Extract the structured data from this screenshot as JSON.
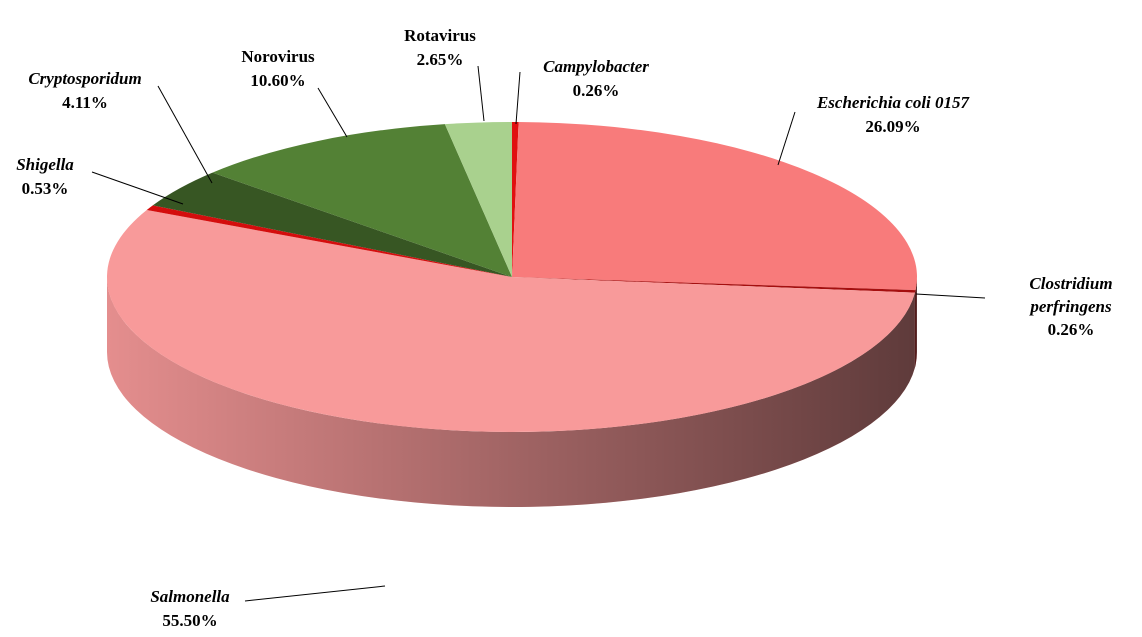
{
  "chart_data": {
    "type": "pie3d",
    "categories": [
      "Campylobacter",
      "Escherichia coli 0157",
      "Clostridium perfringens",
      "Salmonella",
      "Shigella",
      "Cryptosporidum",
      "Norovirus",
      "Rotavirus"
    ],
    "values": [
      0.26,
      26.09,
      0.26,
      55.5,
      0.53,
      4.11,
      10.6,
      2.65
    ],
    "value_labels": [
      "0.26%",
      "26.09%",
      "0.26%",
      "55.50%",
      "0.53%",
      "4.11%",
      "10.60%",
      "2.65%"
    ],
    "colors": [
      "#e01010",
      "#f87b7b",
      "#a50f0f",
      "#f89a9a",
      "#d40d0d",
      "#375623",
      "#538135",
      "#a9d18e"
    ],
    "italic_labels": [
      true,
      true,
      true,
      true,
      true,
      true,
      false,
      false
    ]
  }
}
